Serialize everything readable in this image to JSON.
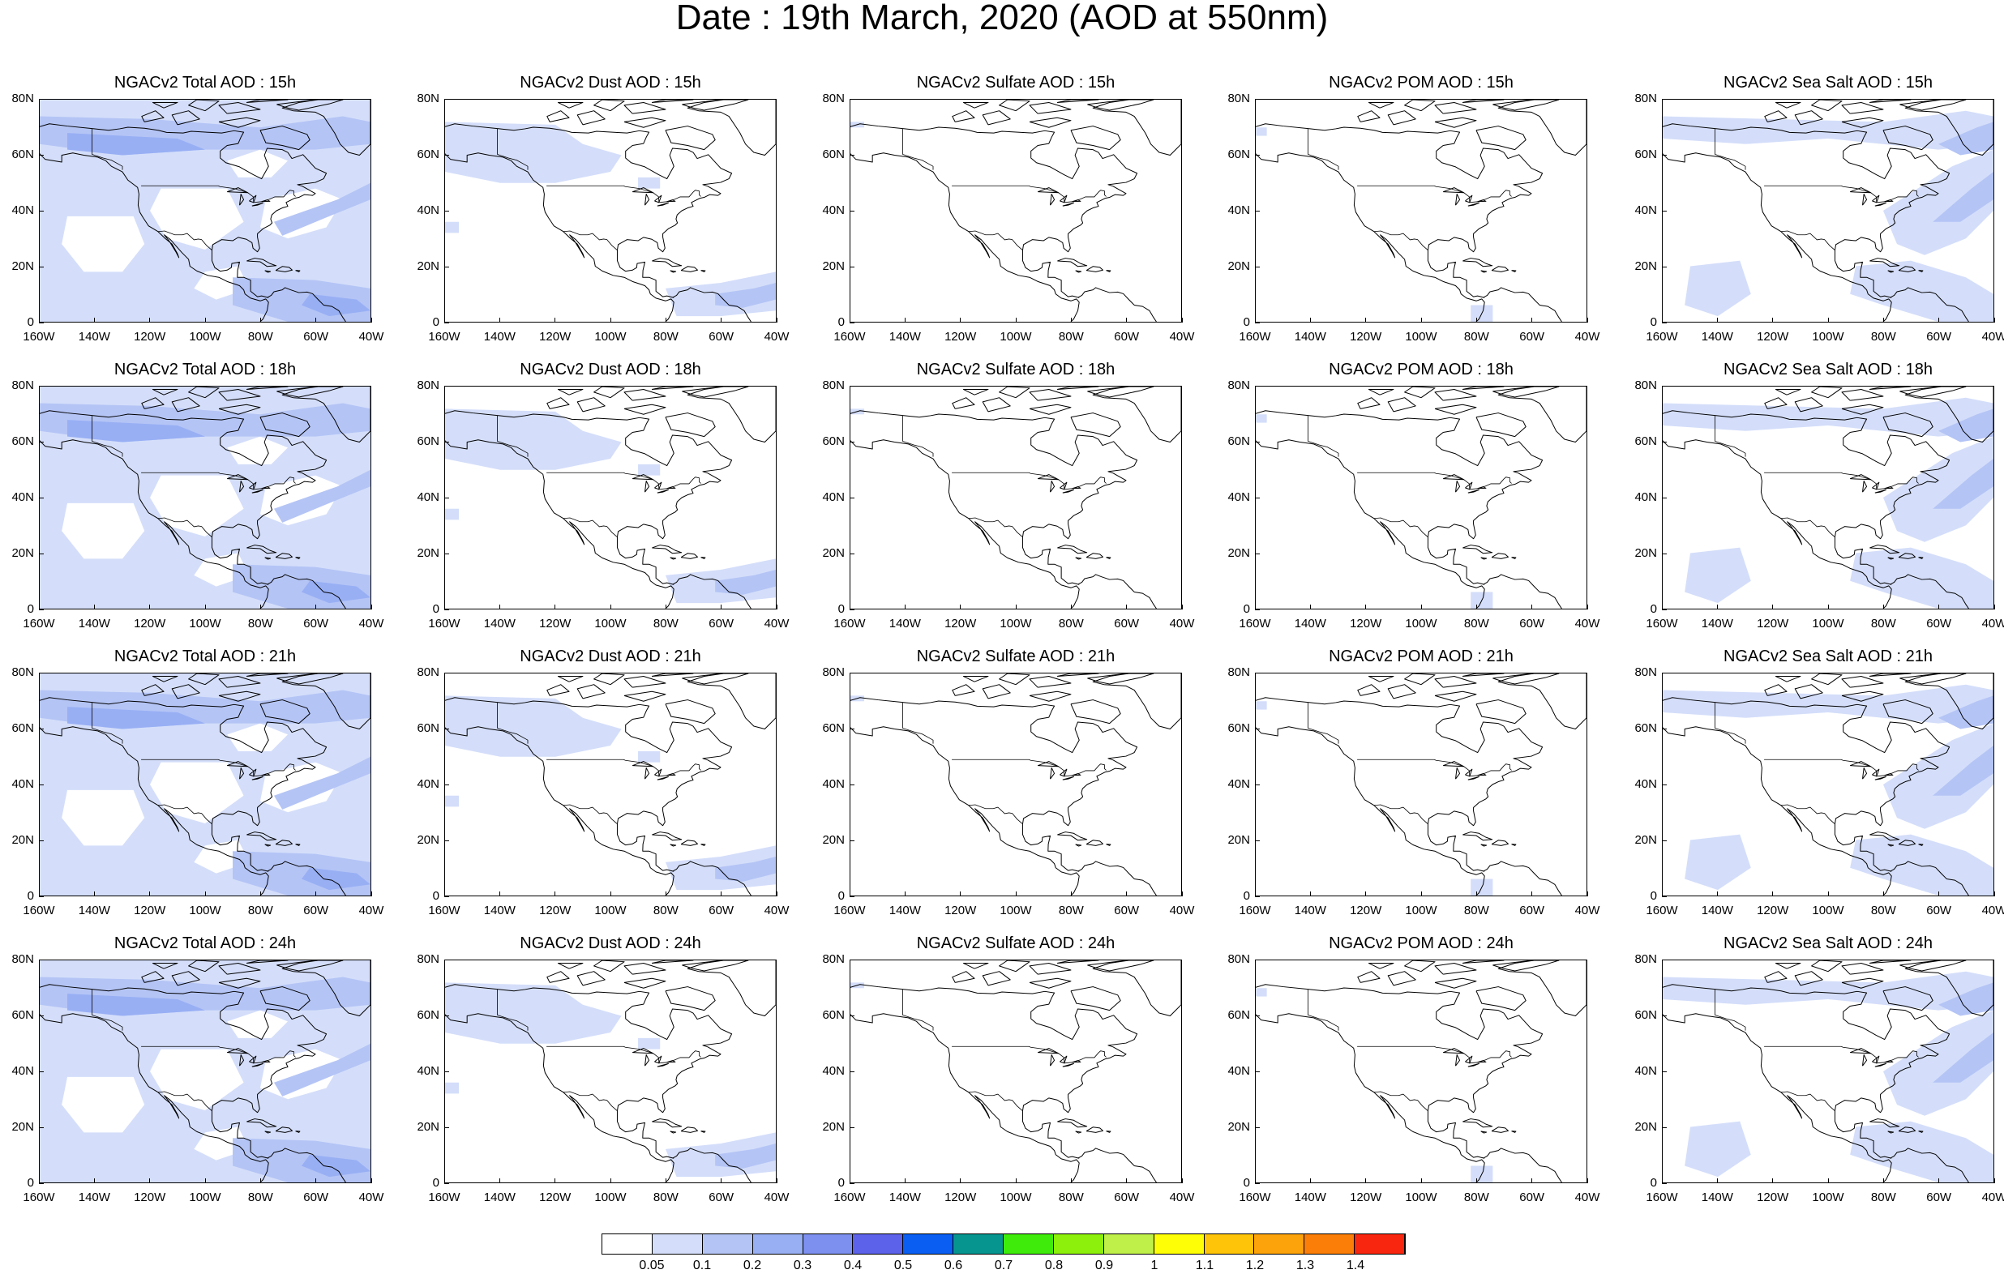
{
  "title": "Date : 19th March, 2020 (AOD at 550nm)",
  "lat_labels": [
    "80N",
    "60N",
    "40N",
    "20N",
    "0"
  ],
  "lon_labels": [
    "160W",
    "140W",
    "120W",
    "100W",
    "80W",
    "60W",
    "40W"
  ],
  "colors": {
    "land": "#ffffff",
    "coast": "#000000",
    "aod_0_05": "#d4defa",
    "aod_0_1": "#b4c4f5",
    "aod_0_2": "#98aff4",
    "aod_0_3": "#7d90f0"
  },
  "panels": [
    [
      {
        "title": "NGACv2 Total AOD : 15h",
        "species": "total"
      },
      {
        "title": "NGACv2 Dust AOD : 15h",
        "species": "dust"
      },
      {
        "title": "NGACv2 Sulfate AOD : 15h",
        "species": "sulfate"
      },
      {
        "title": "NGACv2 POM AOD : 15h",
        "species": "pom"
      },
      {
        "title": "NGACv2 Sea Salt AOD : 15h",
        "species": "seasalt"
      }
    ],
    [
      {
        "title": "NGACv2 Total AOD : 18h",
        "species": "total"
      },
      {
        "title": "NGACv2 Dust AOD : 18h",
        "species": "dust"
      },
      {
        "title": "NGACv2 Sulfate AOD : 18h",
        "species": "sulfate"
      },
      {
        "title": "NGACv2 POM AOD : 18h",
        "species": "pom"
      },
      {
        "title": "NGACv2 Sea Salt AOD : 18h",
        "species": "seasalt"
      }
    ],
    [
      {
        "title": "NGACv2 Total AOD : 21h",
        "species": "total"
      },
      {
        "title": "NGACv2 Dust AOD : 21h",
        "species": "dust"
      },
      {
        "title": "NGACv2 Sulfate AOD : 21h",
        "species": "sulfate"
      },
      {
        "title": "NGACv2 POM AOD : 21h",
        "species": "pom"
      },
      {
        "title": "NGACv2 Sea Salt AOD : 21h",
        "species": "seasalt"
      }
    ],
    [
      {
        "title": "NGACv2 Total AOD : 24h",
        "species": "total"
      },
      {
        "title": "NGACv2 Dust AOD : 24h",
        "species": "dust"
      },
      {
        "title": "NGACv2 Sulfate AOD : 24h",
        "species": "sulfate"
      },
      {
        "title": "NGACv2 POM AOD : 24h",
        "species": "pom"
      },
      {
        "title": "NGACv2 Sea Salt  AOD : 24h",
        "species": "seasalt"
      }
    ]
  ],
  "colorbar": {
    "colors": [
      "#ffffff",
      "#d4defa",
      "#b4c4f5",
      "#98aff4",
      "#7d90f0",
      "#5c62ea",
      "#0a5ff2",
      "#07958f",
      "#3eeb0b",
      "#8cf00c",
      "#bff04a",
      "#fefe06",
      "#fdc409",
      "#fca20a",
      "#fa7e08",
      "#f8260f"
    ],
    "labels": [
      "0.05",
      "0.1",
      "0.2",
      "0.3",
      "0.4",
      "0.5",
      "0.6",
      "0.7",
      "0.8",
      "0.9",
      "1",
      "1.1",
      "1.2",
      "1.3",
      "1.4"
    ]
  }
}
